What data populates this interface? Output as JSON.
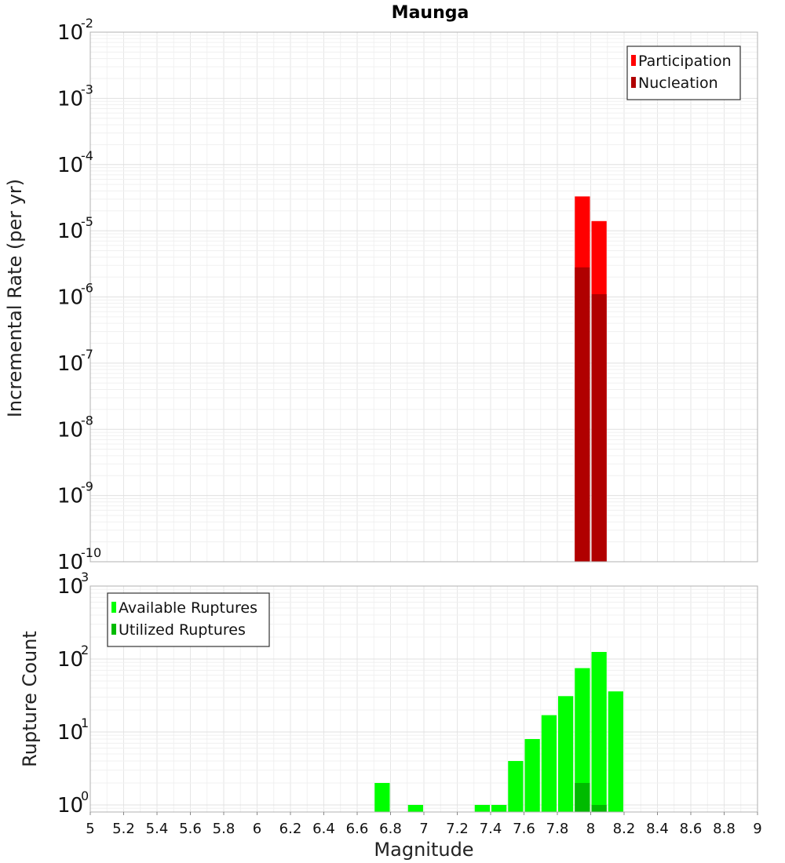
{
  "chart_data": [
    {
      "type": "bar",
      "title": "Maunga",
      "ylabel": "Incremental Rate (per yr)",
      "yscale": "log",
      "ylim": [
        1e-10,
        0.01
      ],
      "ytick_exponents": [
        -10,
        -9,
        -8,
        -7,
        -6,
        -5,
        -4,
        -3,
        -2
      ],
      "grid": true,
      "legend_position": "top-right",
      "series": [
        {
          "name": "Participation",
          "color": "#ff0000",
          "x": [
            7.95,
            8.05
          ],
          "values": [
            3.3e-05,
            1.4e-05
          ]
        },
        {
          "name": "Nucleation",
          "color": "#b00000",
          "x": [
            7.95,
            8.05
          ],
          "values": [
            2.8e-06,
            1.1e-06
          ]
        }
      ]
    },
    {
      "type": "bar",
      "ylabel": "Rupture Count",
      "xlabel": "Magnitude",
      "yscale": "log",
      "ylim": [
        0.8,
        1000
      ],
      "ytick_exponents": [
        0,
        1,
        2,
        3
      ],
      "xlim": [
        5,
        9
      ],
      "xticks": [
        "5",
        "5.2",
        "5.4",
        "5.6",
        "5.8",
        "6",
        "6.2",
        "6.4",
        "6.6",
        "6.8",
        "7",
        "7.2",
        "7.4",
        "7.6",
        "7.8",
        "8",
        "8.2",
        "8.4",
        "8.6",
        "8.8",
        "9"
      ],
      "grid": true,
      "legend_position": "top-left",
      "series": [
        {
          "name": "Available Ruptures",
          "color": "#00ff00",
          "x": [
            6.75,
            6.95,
            7.35,
            7.45,
            7.55,
            7.65,
            7.75,
            7.85,
            7.95,
            8.05,
            8.15
          ],
          "values": [
            2,
            1,
            1,
            1,
            4,
            8,
            17,
            31,
            75,
            125,
            36
          ]
        },
        {
          "name": "Utilized Ruptures",
          "color": "#00bb00",
          "x": [
            7.95,
            8.05
          ],
          "values": [
            2,
            1
          ]
        }
      ]
    }
  ]
}
